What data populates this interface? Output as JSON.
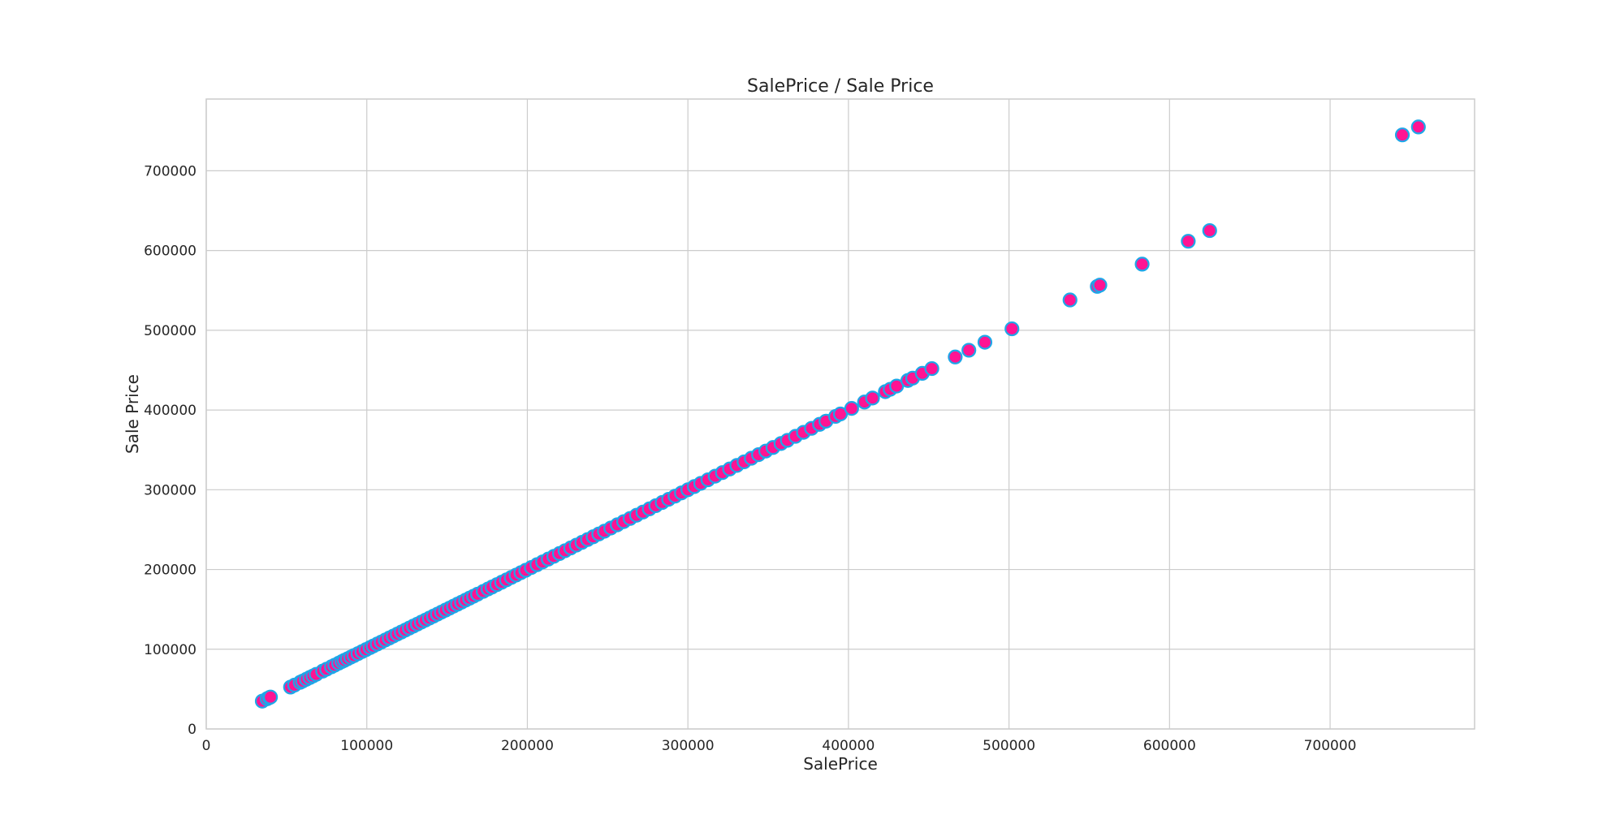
{
  "chart_data": {
    "type": "scatter",
    "title": "SalePrice / Sale Price",
    "xlabel": "SalePrice",
    "ylabel": "Sale Price",
    "xlim": [
      0,
      790000
    ],
    "ylim": [
      0,
      790000
    ],
    "x_ticks": [
      0,
      100000,
      200000,
      300000,
      400000,
      500000,
      600000,
      700000
    ],
    "y_ticks": [
      0,
      100000,
      200000,
      300000,
      400000,
      500000,
      600000,
      700000
    ],
    "x_tick_labels": [
      "0",
      "100000",
      "200000",
      "300000",
      "400000",
      "500000",
      "600000",
      "700000"
    ],
    "y_tick_labels": [
      "0",
      "100000",
      "200000",
      "300000",
      "400000",
      "500000",
      "600000",
      "700000"
    ],
    "grid": true,
    "marker_fill": "#ff1493",
    "marker_edge": "#1ea7e8",
    "points": [
      [
        34900,
        34900
      ],
      [
        37900,
        37900
      ],
      [
        39300,
        39300
      ],
      [
        40000,
        40000
      ],
      [
        52500,
        52500
      ],
      [
        55000,
        55000
      ],
      [
        58500,
        58500
      ],
      [
        60000,
        60000
      ],
      [
        62383,
        62383
      ],
      [
        64500,
        64500
      ],
      [
        66500,
        66500
      ],
      [
        68500,
        68500
      ],
      [
        72500,
        72500
      ],
      [
        75000,
        75000
      ],
      [
        78000,
        78000
      ],
      [
        80000,
        80000
      ],
      [
        82500,
        82500
      ],
      [
        84500,
        84500
      ],
      [
        86000,
        86000
      ],
      [
        88000,
        88000
      ],
      [
        90000,
        90000
      ],
      [
        92000,
        92000
      ],
      [
        94500,
        94500
      ],
      [
        97000,
        97000
      ],
      [
        99500,
        99500
      ],
      [
        102000,
        102000
      ],
      [
        104000,
        104000
      ],
      [
        106500,
        106500
      ],
      [
        109000,
        109000
      ],
      [
        111500,
        111500
      ],
      [
        114000,
        114000
      ],
      [
        116500,
        116500
      ],
      [
        119000,
        119000
      ],
      [
        121500,
        121500
      ],
      [
        124000,
        124000
      ],
      [
        126500,
        126500
      ],
      [
        129000,
        129000
      ],
      [
        131500,
        131500
      ],
      [
        134000,
        134000
      ],
      [
        136500,
        136500
      ],
      [
        139000,
        139000
      ],
      [
        141500,
        141500
      ],
      [
        144000,
        144000
      ],
      [
        146500,
        146500
      ],
      [
        149000,
        149000
      ],
      [
        151500,
        151500
      ],
      [
        154000,
        154000
      ],
      [
        156500,
        156500
      ],
      [
        159000,
        159000
      ],
      [
        161500,
        161500
      ],
      [
        164000,
        164000
      ],
      [
        166500,
        166500
      ],
      [
        169000,
        169000
      ],
      [
        172500,
        172500
      ],
      [
        175500,
        175500
      ],
      [
        178000,
        178000
      ],
      [
        181000,
        181000
      ],
      [
        184000,
        184000
      ],
      [
        187000,
        187000
      ],
      [
        190000,
        190000
      ],
      [
        193000,
        193000
      ],
      [
        196000,
        196000
      ],
      [
        199000,
        199000
      ],
      [
        202500,
        202500
      ],
      [
        206000,
        206000
      ],
      [
        209500,
        209500
      ],
      [
        213000,
        213000
      ],
      [
        216500,
        216500
      ],
      [
        220000,
        220000
      ],
      [
        223500,
        223500
      ],
      [
        227000,
        227000
      ],
      [
        230500,
        230500
      ],
      [
        234000,
        234000
      ],
      [
        237500,
        237500
      ],
      [
        241000,
        241000
      ],
      [
        244500,
        244500
      ],
      [
        248000,
        248000
      ],
      [
        252000,
        252000
      ],
      [
        256000,
        256000
      ],
      [
        260000,
        260000
      ],
      [
        264000,
        264000
      ],
      [
        268000,
        268000
      ],
      [
        272000,
        272000
      ],
      [
        276000,
        276000
      ],
      [
        280000,
        280000
      ],
      [
        284000,
        284000
      ],
      [
        288000,
        288000
      ],
      [
        292000,
        292000
      ],
      [
        296000,
        296000
      ],
      [
        300000,
        300000
      ],
      [
        304000,
        304000
      ],
      [
        308000,
        308000
      ],
      [
        312500,
        312500
      ],
      [
        317000,
        317000
      ],
      [
        321500,
        321500
      ],
      [
        326000,
        326000
      ],
      [
        330500,
        330500
      ],
      [
        335000,
        335000
      ],
      [
        339500,
        339500
      ],
      [
        344000,
        344000
      ],
      [
        348500,
        348500
      ],
      [
        353000,
        353000
      ],
      [
        358000,
        358000
      ],
      [
        362000,
        362000
      ],
      [
        367000,
        367000
      ],
      [
        372000,
        372000
      ],
      [
        377000,
        377000
      ],
      [
        382000,
        382000
      ],
      [
        386000,
        386000
      ],
      [
        392000,
        392000
      ],
      [
        395000,
        395000
      ],
      [
        402000,
        402000
      ],
      [
        410000,
        410000
      ],
      [
        415000,
        415000
      ],
      [
        423000,
        423000
      ],
      [
        426000,
        426000
      ],
      [
        430000,
        430000
      ],
      [
        437000,
        437000
      ],
      [
        440000,
        440000
      ],
      [
        446000,
        446000
      ],
      [
        451950,
        451950
      ],
      [
        466500,
        466500
      ],
      [
        475000,
        475000
      ],
      [
        485000,
        485000
      ],
      [
        501837,
        501837
      ],
      [
        538000,
        538000
      ],
      [
        555000,
        555000
      ],
      [
        556581,
        556581
      ],
      [
        582933,
        582933
      ],
      [
        611657,
        611657
      ],
      [
        625000,
        625000
      ],
      [
        745000,
        745000
      ],
      [
        755000,
        755000
      ]
    ]
  }
}
